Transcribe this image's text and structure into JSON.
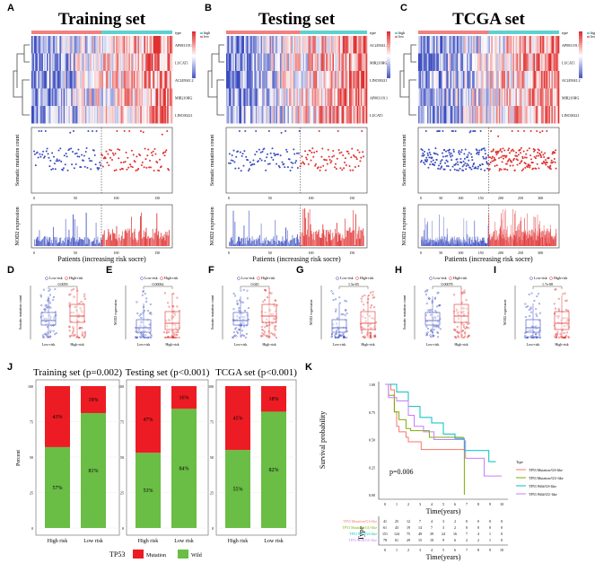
{
  "panel_letters": [
    "A",
    "B",
    "C",
    "D",
    "E",
    "F",
    "G",
    "H",
    "I",
    "J",
    "K"
  ],
  "heatmaps": [
    {
      "title": "Training set",
      "genes": [
        "AP003119.1",
        "LUCAT1",
        "AC245041.2",
        "MIR210HG",
        "LINC00221"
      ],
      "n": 165,
      "split": 82
    },
    {
      "title": "Testing set",
      "genes": [
        "AC245041.2",
        "MIR210HG",
        "LINC00221",
        "AP003119.1",
        "LUCAT1"
      ],
      "n": 165,
      "split": 87
    },
    {
      "title": "TCGA set",
      "genes": [
        "AP003119.1",
        "LUCAT1",
        "AC245041.2",
        "MIR210HG",
        "LINC00221"
      ],
      "n": 340,
      "split": 170
    }
  ],
  "heatmap_legend": {
    "type_label": "type",
    "high": "high",
    "low": "low"
  },
  "scatter": {
    "ylabel": "Somatic mutation count",
    "xticks": [
      [
        "0",
        "50",
        "100",
        "150"
      ],
      [
        "0",
        "50",
        "100",
        "150"
      ],
      [
        "0",
        "50",
        "100",
        "150",
        "200",
        "250",
        "300"
      ]
    ]
  },
  "nod2": {
    "ylabel": "NOD2 expression",
    "xlabel": "Patients (increasing risk socre)"
  },
  "boxplots": [
    {
      "ylabel": "Somatic mutation count",
      "p": "0.0059"
    },
    {
      "ylabel": "NOD2 expression",
      "p": "0.00062"
    },
    {
      "ylabel": "Somatic mutation count",
      "p": "0.045"
    },
    {
      "ylabel": "NOD2 expression",
      "p": "1.5e-05"
    },
    {
      "ylabel": "Somatic mutation count",
      "p": "0.00078"
    },
    {
      "ylabel": "NOD2 expression",
      "p": "1.7e-08"
    }
  ],
  "box_groups": [
    "Low-risk",
    "High-risk"
  ],
  "colors": {
    "low": "#3b4cc0",
    "high": "#e03030",
    "mutation": "#ED1C24",
    "wild": "#6ABD45"
  },
  "chart_data": [
    {
      "type": "bar",
      "stacked": true,
      "ylabel": "Percent",
      "ylim": [
        0,
        100
      ],
      "yticks": [
        "0",
        "25",
        "50",
        "75",
        "100"
      ],
      "legend_title": "TP53",
      "legend": [
        "Mutation",
        "Wild"
      ],
      "legend_placement": "bottom",
      "facets": [
        {
          "title": "Training set (p=0.002)",
          "categories": [
            "High risk",
            "Low risk"
          ],
          "mutation": [
            43,
            19
          ],
          "wild": [
            57,
            81
          ]
        },
        {
          "title": "Testing set (p<0.001)",
          "categories": [
            "High risk",
            "Low risk"
          ],
          "mutation": [
            47,
            16
          ],
          "wild": [
            53,
            84
          ]
        },
        {
          "title": "TCGA set (p<0.001)",
          "categories": [
            "High risk",
            "Low risk"
          ],
          "mutation": [
            45,
            18
          ],
          "wild": [
            55,
            82
          ]
        }
      ]
    },
    {
      "type": "line",
      "subtype": "kaplan-meier",
      "xlabel": "Time(years)",
      "ylabel": "Survival probability",
      "xlim": [
        0,
        10
      ],
      "ylim": [
        0,
        1
      ],
      "xticks": [
        "0",
        "1",
        "2",
        "3",
        "4",
        "5",
        "6",
        "7",
        "8",
        "9",
        "10"
      ],
      "yticks": [
        "0.00",
        "0.25",
        "0.50",
        "0.75",
        "1.00"
      ],
      "pvalue": "p=0.006",
      "legend_title": "Type",
      "legend_placement": "right",
      "series": [
        {
          "name": "TP53 Mutation/GS-like",
          "color": "#F8766D",
          "points": [
            [
              0,
              1
            ],
            [
              0.5,
              0.95
            ],
            [
              0.8,
              0.75
            ],
            [
              1,
              0.62
            ],
            [
              1.2,
              0.57
            ],
            [
              1.8,
              0.52
            ],
            [
              2,
              0.48
            ],
            [
              3.1,
              0.41
            ],
            [
              6.8,
              0.41
            ]
          ],
          "at_risk": [
            "41",
            "25",
            "12",
            "7",
            "4",
            "3",
            "2",
            "0",
            "0",
            "0",
            "0"
          ]
        },
        {
          "name": "TP53 Mutation/GU-like",
          "color": "#7CAE00",
          "points": [
            [
              0,
              1
            ],
            [
              0.3,
              0.9
            ],
            [
              0.8,
              0.75
            ],
            [
              1.2,
              0.68
            ],
            [
              1.8,
              0.6
            ],
            [
              2.2,
              0.58
            ],
            [
              3.8,
              0.52
            ],
            [
              6.7,
              0.5
            ],
            [
              6.8,
              0
            ]
          ],
          "at_risk": [
            "61",
            "43",
            "19",
            "14",
            "7",
            "3",
            "2",
            "0",
            "0",
            "0",
            "0"
          ]
        },
        {
          "name": "TP53 Wild/GS-like",
          "color": "#00BFC4",
          "points": [
            [
              0,
              1
            ],
            [
              1,
              0.93
            ],
            [
              2,
              0.8
            ],
            [
              3,
              0.7
            ],
            [
              4,
              0.65
            ],
            [
              5,
              0.55
            ],
            [
              6,
              0.51
            ],
            [
              6.8,
              0.4
            ],
            [
              8.9,
              0.3
            ],
            [
              9.5,
              0.3
            ]
          ],
          "at_risk": [
            "151",
            "124",
            "75",
            "49",
            "39",
            "24",
            "16",
            "7",
            "4",
            "1",
            "0"
          ]
        },
        {
          "name": "TP53 Wild/GU-like",
          "color": "#C77CFF",
          "points": [
            [
              0,
              1
            ],
            [
              0.3,
              0.88
            ],
            [
              1,
              0.85
            ],
            [
              2,
              0.72
            ],
            [
              2.5,
              0.62
            ],
            [
              3.3,
              0.57
            ],
            [
              4.2,
              0.5
            ],
            [
              6.8,
              0.49
            ],
            [
              6.9,
              0.33
            ],
            [
              8.5,
              0.17
            ],
            [
              10,
              0.17
            ]
          ],
          "at_risk": [
            "78",
            "61",
            "29",
            "15",
            "10",
            "9",
            "6",
            "2",
            "2",
            "1",
            "0"
          ]
        }
      ],
      "risk_table_ylabel": "Type"
    }
  ]
}
